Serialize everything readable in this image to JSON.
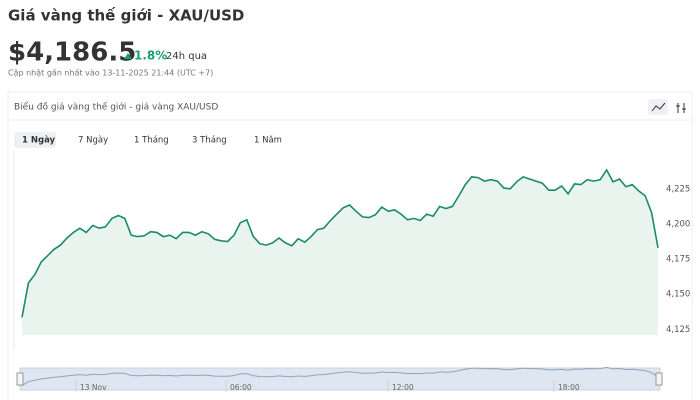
{
  "header": {
    "title": "Giá vàng thế giới - XAU/USD",
    "price": "$4,186.5",
    "change": "1.8%",
    "period": "24h qua",
    "updated": "Cập nhật gần nhất vào 13-11-2025 21:44 (UTC +7)"
  },
  "card": {
    "title": "Biểu đồ giá vàng thế giới - giá vàng XAU/USD",
    "tabs": [
      "1 Ngày",
      "7 Ngày",
      "1 Tháng",
      "3 Tháng",
      "1 Năm"
    ]
  },
  "chart_data": {
    "type": "line",
    "color": "#1b8a6b",
    "area_color": "#e9f4ef",
    "values": [
      4133.5,
      4158,
      4164,
      4173,
      4177.5,
      4182,
      4185,
      4190,
      4194,
      4197,
      4194,
      4199,
      4197,
      4198,
      4204,
      4206,
      4204,
      4192,
      4191,
      4191.5,
      4194.5,
      4194,
      4191,
      4192,
      4189.5,
      4194,
      4194,
      4192,
      4194.5,
      4193,
      4189,
      4188,
      4187.5,
      4192,
      4201,
      4203,
      4191,
      4186,
      4185,
      4186.5,
      4190,
      4186.5,
      4184.5,
      4189.5,
      4187,
      4191,
      4196,
      4197,
      4202.5,
      4207,
      4211.5,
      4213.5,
      4209,
      4205,
      4204.5,
      4206.5,
      4212,
      4209,
      4210,
      4207,
      4203,
      4204,
      4202.5,
      4207,
      4205.5,
      4212.5,
      4211,
      4212.5,
      4220,
      4228,
      4233.5,
      4233,
      4230.5,
      4231.5,
      4230.5,
      4225.5,
      4225,
      4230,
      4233.5,
      4232,
      4230.5,
      4229,
      4224,
      4224,
      4227,
      4221.5,
      4228.5,
      4228,
      4231.5,
      4230.5,
      4231.5,
      4238.5,
      4230,
      4232,
      4226.5,
      4228,
      4223.5,
      4220,
      4208,
      4183
    ],
    "ylim": [
      4121,
      4269
    ],
    "yticks": [
      {
        "value": 4125,
        "label": "4,125"
      },
      {
        "value": 4150,
        "label": "4,150"
      },
      {
        "value": 4175,
        "label": "4,175"
      },
      {
        "value": 4200,
        "label": "4,200"
      },
      {
        "value": 4225,
        "label": "4,225"
      }
    ],
    "grid": false,
    "navigator_labels": [
      "13 Nov",
      "06:00",
      "12:00",
      "18:00"
    ]
  }
}
